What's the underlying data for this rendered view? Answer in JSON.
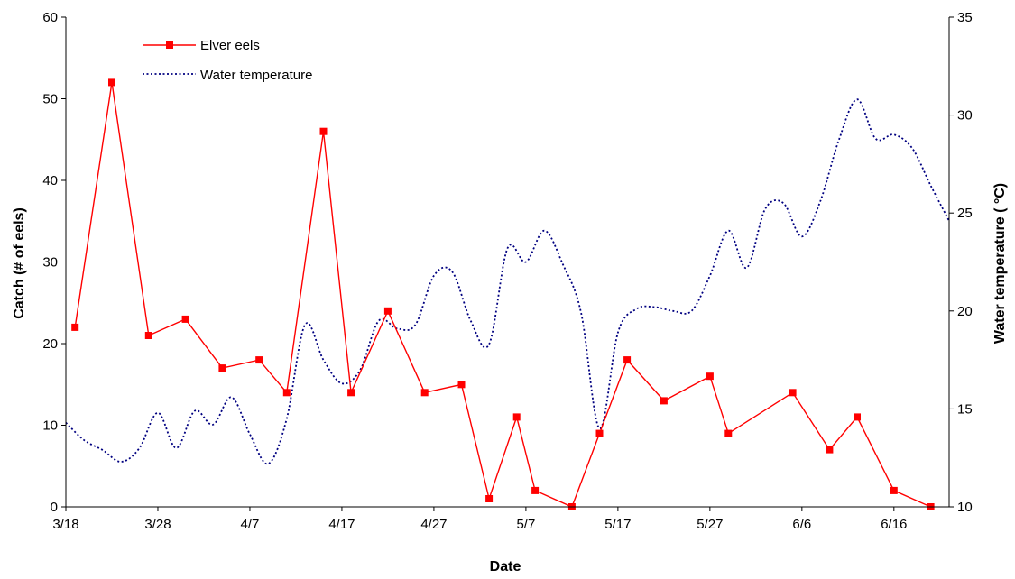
{
  "chart_data": {
    "type": "line",
    "xlabel": "Date",
    "ylabel_left": "Catch (# of eels)",
    "ylabel_right": "Water temperature  ( °C)",
    "x_ticks": [
      "3/18",
      "3/28",
      "4/7",
      "4/17",
      "4/27",
      "5/7",
      "5/17",
      "5/27",
      "6/6",
      "6/16"
    ],
    "ylim_left": [
      0,
      60
    ],
    "y_ticks_left": [
      0,
      10,
      20,
      30,
      40,
      50,
      60
    ],
    "ylim_right": [
      10,
      35
    ],
    "y_ticks_right": [
      10,
      15,
      20,
      25,
      30,
      35
    ],
    "grid": false,
    "legend": "top-left",
    "series": [
      {
        "name": "Elver eels",
        "axis": "left",
        "color": "#ff0000",
        "marker": "square",
        "points": [
          [
            "3/19",
            22
          ],
          [
            "3/23",
            52
          ],
          [
            "3/27",
            21
          ],
          [
            "3/31",
            23
          ],
          [
            "4/4",
            17
          ],
          [
            "4/8",
            18
          ],
          [
            "4/11",
            14
          ],
          [
            "4/15",
            46
          ],
          [
            "4/18",
            14
          ],
          [
            "4/22",
            24
          ],
          [
            "4/26",
            14
          ],
          [
            "4/30",
            15
          ],
          [
            "5/3",
            1
          ],
          [
            "5/6",
            11
          ],
          [
            "5/8",
            2
          ],
          [
            "5/12",
            0
          ],
          [
            "5/15",
            9
          ],
          [
            "5/18",
            18
          ],
          [
            "5/22",
            13
          ],
          [
            "5/27",
            16
          ],
          [
            "5/29",
            9
          ],
          [
            "6/5",
            14
          ],
          [
            "6/9",
            7
          ],
          [
            "6/12",
            11
          ],
          [
            "6/16",
            2
          ],
          [
            "6/20",
            0
          ]
        ]
      },
      {
        "name": "Water temperature",
        "axis": "right",
        "color": "#000080",
        "style": "dotted",
        "points": [
          [
            "3/18",
            14.3
          ],
          [
            "3/20",
            13.4
          ],
          [
            "3/22",
            12.9
          ],
          [
            "3/24",
            12.3
          ],
          [
            "3/26",
            13.0
          ],
          [
            "3/28",
            14.8
          ],
          [
            "3/30",
            13.0
          ],
          [
            "4/1",
            14.9
          ],
          [
            "4/3",
            14.2
          ],
          [
            "4/5",
            15.6
          ],
          [
            "4/7",
            13.7
          ],
          [
            "4/9",
            12.2
          ],
          [
            "4/11",
            14.5
          ],
          [
            "4/13",
            19.3
          ],
          [
            "4/15",
            17.5
          ],
          [
            "4/17",
            16.3
          ],
          [
            "4/19",
            17.0
          ],
          [
            "4/21",
            19.5
          ],
          [
            "4/23",
            19.1
          ],
          [
            "4/25",
            19.3
          ],
          [
            "4/27",
            21.8
          ],
          [
            "4/29",
            22.0
          ],
          [
            "5/1",
            19.5
          ],
          [
            "5/3",
            18.3
          ],
          [
            "5/5",
            23.2
          ],
          [
            "5/7",
            22.5
          ],
          [
            "5/9",
            24.1
          ],
          [
            "5/11",
            22.4
          ],
          [
            "5/13",
            19.9
          ],
          [
            "5/15",
            14.0
          ],
          [
            "5/17",
            18.9
          ],
          [
            "5/19",
            20.1
          ],
          [
            "5/21",
            20.2
          ],
          [
            "5/23",
            20.0
          ],
          [
            "5/25",
            20.0
          ],
          [
            "5/27",
            21.8
          ],
          [
            "5/29",
            24.1
          ],
          [
            "5/31",
            22.2
          ],
          [
            "6/2",
            25.2
          ],
          [
            "6/4",
            25.5
          ],
          [
            "6/6",
            23.8
          ],
          [
            "6/8",
            25.6
          ],
          [
            "6/10",
            28.7
          ],
          [
            "6/12",
            30.8
          ],
          [
            "6/14",
            28.8
          ],
          [
            "6/16",
            29.0
          ],
          [
            "6/18",
            28.3
          ],
          [
            "6/20",
            26.4
          ],
          [
            "6/22",
            24.6
          ]
        ]
      }
    ]
  }
}
